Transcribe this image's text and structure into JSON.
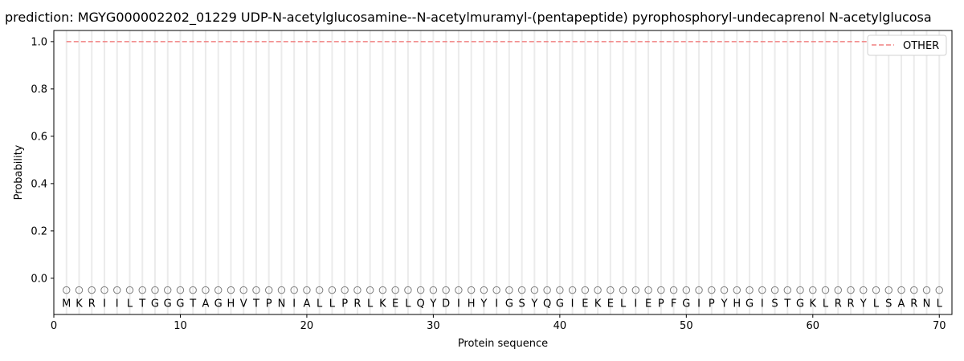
{
  "chart_data": {
    "type": "line",
    "title": "prediction: MGYG000002202_01229 UDP-N-acetylglucosamine--N-acetylmuramyl-(pentapeptide) pyrophosphoryl-undecaprenol N-acetylglucosa",
    "xlabel": "Protein sequence",
    "ylabel": "Probability",
    "xlim": [
      0,
      71
    ],
    "ylim": [
      -0.153,
      1.047
    ],
    "xticks": [
      0,
      10,
      20,
      30,
      40,
      50,
      60,
      70
    ],
    "yticks": [
      0.0,
      0.2,
      0.4,
      0.6,
      0.8,
      1.0
    ],
    "ytick_labels": [
      "0.0",
      "0.2",
      "0.4",
      "0.6",
      "0.8",
      "1.0"
    ],
    "grid": "vertical per residue",
    "legend_position": "top-right",
    "sequence": "MKRIILTGGGTAGHVTPNIALLPRLKELQYDIHYIGSYQGIEKELIEPFGIPYHGISTGKLRRYLSARNL",
    "marker_y": -0.05,
    "series": [
      {
        "name": "OTHER",
        "color": "#f08080",
        "style": "dashed",
        "x_start": 1,
        "x_end": 70,
        "value": 1.0
      }
    ]
  }
}
